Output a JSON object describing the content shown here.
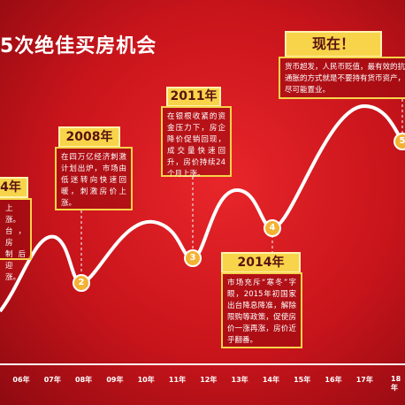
{
  "header": {
    "title": "5次绝佳买房机会"
  },
  "boxes": [
    {
      "label": "4年",
      "lines": [
        "上涨。",
        "台，房",
        "制后迎",
        "涨。"
      ]
    },
    {
      "label": "2008年",
      "text": "在四万亿经济刺激计划出炉，市场由低迷转向快速回暖，刺激房价上涨。"
    },
    {
      "label": "2011年",
      "text": "在银根收紧的资金压力下，房企降价促销回现，成交量快速回升，房价持续24个月上涨。"
    },
    {
      "label": "2014年",
      "text": "市场充斥“寒冬”字眼，2015年初国家出台降息降准，解除限购等政策，促使房价一涨再涨，房价近乎翻番。"
    },
    {
      "label": "现在！",
      "text": "货币超发，人民币贬值，最有效的抗通胀的方式就是不要持有货币资产，尽可能置业。"
    }
  ],
  "markers": [
    "2",
    "3",
    "4",
    "5"
  ],
  "axis": [
    "06年",
    "07年",
    "08年",
    "09年",
    "10年",
    "11年",
    "12年",
    "13年",
    "14年",
    "15年",
    "16年",
    "17年",
    "18年"
  ]
}
